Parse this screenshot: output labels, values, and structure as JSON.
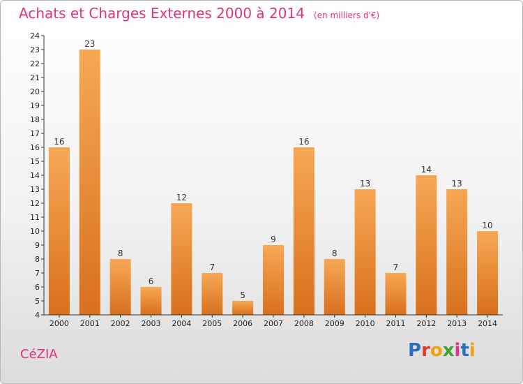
{
  "header": {
    "title": "Achats et Charges Externes 2000 à 2014",
    "unit": "(en milliers d'€)"
  },
  "footer": {
    "commune": "CéZIA",
    "brand_letters": [
      "P",
      "r",
      "o",
      "x",
      "i",
      "t",
      "i"
    ],
    "brand_colors": [
      "#2e6fc0",
      "#e03a2a",
      "#f2a20c",
      "#3da52d",
      "#e0327f",
      "#2e6fc0",
      "#f2a20c"
    ]
  },
  "colors": {
    "bar_top": "#f7a855",
    "bar_bottom": "#d8701c",
    "title": "#e0327f"
  },
  "chart_data": {
    "type": "bar",
    "title": "Achats et Charges Externes 2000 à 2014",
    "xlabel": "",
    "ylabel": "",
    "categories": [
      "2000",
      "2001",
      "2002",
      "2003",
      "2004",
      "2005",
      "2006",
      "2007",
      "2008",
      "2009",
      "2010",
      "2011",
      "2012",
      "2013",
      "2014"
    ],
    "values": [
      16,
      23,
      8,
      6,
      12,
      7,
      5,
      9,
      16,
      8,
      13,
      7,
      14,
      13,
      10
    ],
    "ylim": [
      4,
      24
    ],
    "yticks": [
      4,
      5,
      6,
      7,
      8,
      9,
      10,
      11,
      12,
      13,
      14,
      15,
      16,
      17,
      18,
      19,
      20,
      21,
      22,
      23,
      24
    ],
    "grid": false,
    "legend": "none"
  }
}
